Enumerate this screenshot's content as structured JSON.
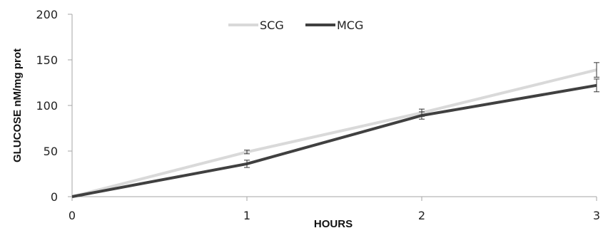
{
  "chart_data": {
    "type": "line",
    "xlabel": "HOURS",
    "ylabel": "GLUCOSE nM/mg prot",
    "x": [
      0,
      1,
      2,
      3
    ],
    "x_ticks": [
      "0",
      "1",
      "2",
      "3"
    ],
    "y_ticks": [
      "0",
      "50",
      "100",
      "150",
      "200"
    ],
    "ylim": [
      0,
      200
    ],
    "xlim": [
      0,
      3
    ],
    "grid": false,
    "legend_position": "top-center",
    "series": [
      {
        "name": "SCG",
        "values": [
          0,
          49,
          92,
          139
        ],
        "error": [
          0,
          2,
          4,
          8
        ],
        "color": "#d9d9d9"
      },
      {
        "name": "MCG",
        "values": [
          0,
          36,
          89,
          122
        ],
        "error": [
          0,
          4,
          4,
          7
        ],
        "color": "#404040"
      }
    ]
  }
}
